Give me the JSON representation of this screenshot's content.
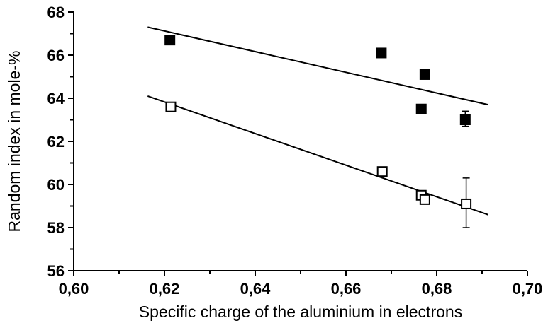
{
  "chart_data": {
    "type": "scatter",
    "title": "",
    "xlabel": "Specific charge of the aluminium in electrons",
    "ylabel": "Random index in mole-%",
    "xlim": [
      0.6,
      0.7
    ],
    "ylim": [
      56,
      68
    ],
    "x_ticks": [
      0.6,
      0.62,
      0.64,
      0.66,
      0.68,
      0.7
    ],
    "x_tick_labels": [
      "0,60",
      "0,62",
      "0,64",
      "0,66",
      "0,68",
      "0,70"
    ],
    "y_ticks": [
      56,
      58,
      60,
      62,
      64,
      66,
      68
    ],
    "y_tick_labels": [
      "56",
      "58",
      "60",
      "62",
      "64",
      "66",
      "68"
    ],
    "grid": false,
    "series": [
      {
        "marker": "filled-square",
        "color": "#000000",
        "points": [
          {
            "x": 0.6212,
            "y": 66.7
          },
          {
            "x": 0.6678,
            "y": 66.1
          },
          {
            "x": 0.6774,
            "y": 65.1
          },
          {
            "x": 0.6766,
            "y": 63.5
          },
          {
            "x": 0.6863,
            "y": 63.0,
            "err_low": 62.7,
            "err_high": 63.4
          }
        ],
        "fit_line": {
          "x": [
            0.6163,
            0.6913
          ],
          "y": [
            67.3,
            63.7
          ]
        }
      },
      {
        "marker": "open-square",
        "color": "#000000",
        "points": [
          {
            "x": 0.6214,
            "y": 63.6
          },
          {
            "x": 0.668,
            "y": 60.6
          },
          {
            "x": 0.6766,
            "y": 59.5
          },
          {
            "x": 0.6774,
            "y": 59.3
          },
          {
            "x": 0.6865,
            "y": 59.1,
            "err_low": 58.0,
            "err_high": 60.3
          }
        ],
        "fit_line": {
          "x": [
            0.6163,
            0.6913
          ],
          "y": [
            64.1,
            58.6
          ]
        }
      }
    ]
  }
}
